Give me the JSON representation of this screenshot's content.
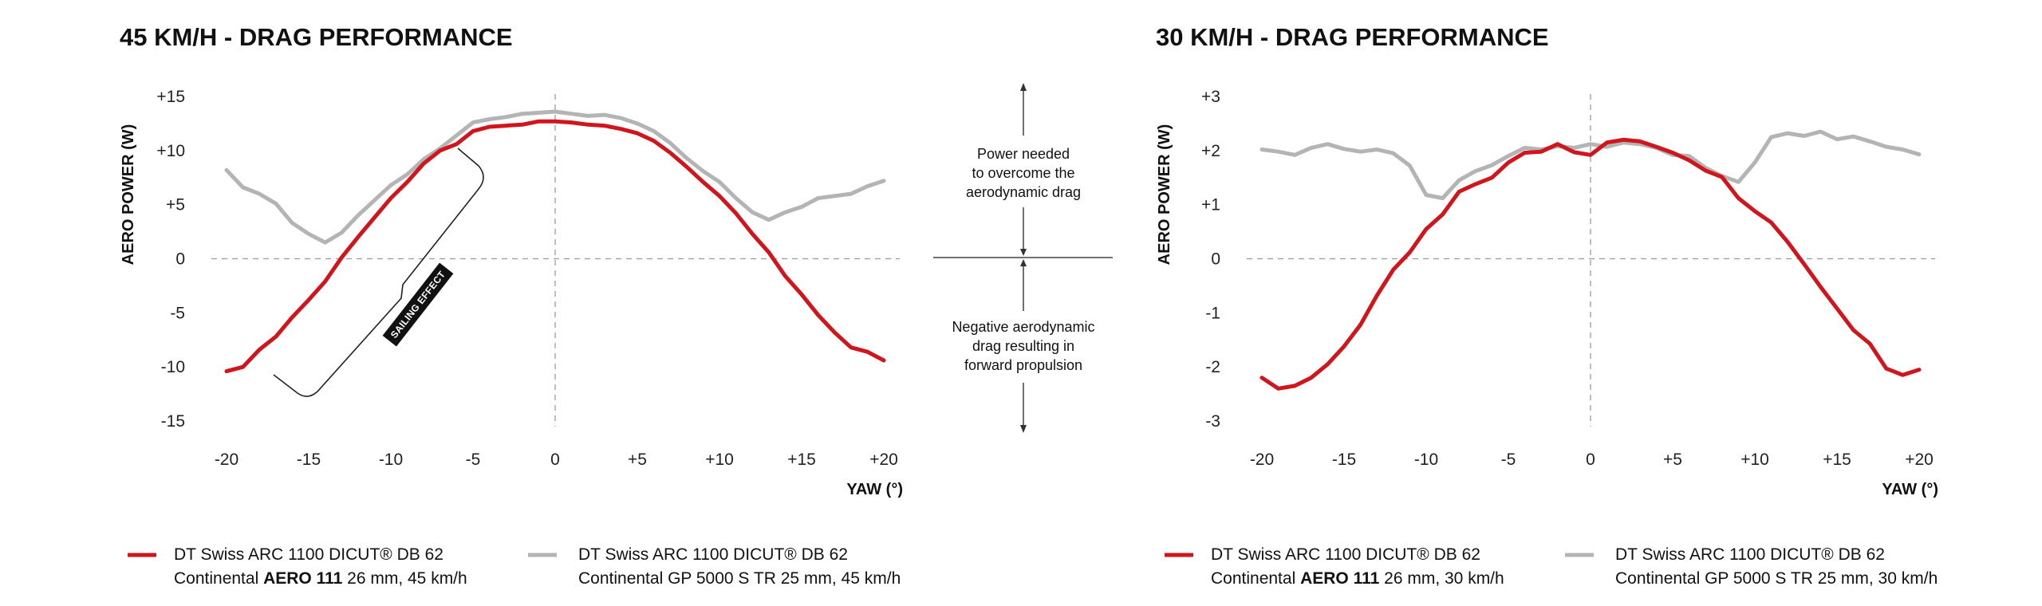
{
  "colors": {
    "red": "#d0151c",
    "gray": "#b4b4b4",
    "zero_line": "#9a9a9a",
    "text": "#111111"
  },
  "explainer": {
    "positive": [
      "Power needed",
      "to overcome the",
      "aerodynamic drag"
    ],
    "negative": [
      "Negative aerodynamic",
      "drag resulting in",
      "forward propulsion"
    ]
  },
  "chart_data": [
    {
      "type": "line",
      "title": "45 KM/H - DRAG PERFORMANCE",
      "ylabel": "AERO POWER (W)",
      "xlabel": "YAW (°)",
      "xlim": [
        -20,
        20
      ],
      "ylim": [
        -15,
        15
      ],
      "xticks": [
        "-20",
        "-15",
        "-10",
        "-5",
        "0",
        "+5",
        "+10",
        "+15",
        "+20"
      ],
      "yticks": [
        "+15",
        "+10",
        "+5",
        "0",
        "-5",
        "-10",
        "-15"
      ],
      "grid": "dashed zero lines",
      "annotation": "SAILING EFFECT",
      "series": [
        {
          "name": "DT Swiss ARC 1100 DICUT® DB 62 / Continental AERO 111 26 mm, 45 km/h",
          "color": "#d0151c",
          "x": [
            -20,
            -19,
            -18,
            -17,
            -16,
            -15,
            -14,
            -13,
            -12,
            -11,
            -10,
            -9,
            -8,
            -7,
            -6,
            -5,
            -4,
            -3,
            -2,
            -1,
            0,
            1,
            2,
            3,
            4,
            5,
            6,
            7,
            8,
            9,
            10,
            11,
            12,
            13,
            14,
            15,
            16,
            17,
            18,
            19,
            20
          ],
          "y": [
            -10.4,
            -10,
            -8.4,
            -7.2,
            -5.4,
            -3.8,
            -2.1,
            0.1,
            2,
            3.8,
            5.6,
            7.1,
            8.8,
            10,
            10.6,
            11.8,
            12.2,
            12.3,
            12.4,
            12.7,
            12.7,
            12.6,
            12.4,
            12.3,
            12,
            11.6,
            10.9,
            9.8,
            8.5,
            7.1,
            5.8,
            4.2,
            2.3,
            0.6,
            -1.6,
            -3.3,
            -5.2,
            -6.8,
            -8.2,
            -8.6,
            -9.4
          ]
        },
        {
          "name": "DT Swiss ARC 1100 DICUT® DB 62 / Continental GP 5000 S TR 25 mm, 45 km/h",
          "color": "#b4b4b4",
          "x": [
            -20,
            -19,
            -18,
            -17,
            -16,
            -15,
            -14,
            -13,
            -12,
            -11,
            -10,
            -9,
            -8,
            -7,
            -6,
            -5,
            -4,
            -3,
            -2,
            -1,
            0,
            1,
            2,
            3,
            4,
            5,
            6,
            7,
            8,
            9,
            10,
            11,
            12,
            13,
            14,
            15,
            16,
            17,
            18,
            19,
            20
          ],
          "y": [
            8.2,
            6.6,
            6,
            5.1,
            3.3,
            2.3,
            1.5,
            2.4,
            4,
            5.4,
            6.8,
            7.8,
            9.2,
            10.2,
            11.4,
            12.6,
            12.9,
            13.1,
            13.4,
            13.5,
            13.6,
            13.4,
            13.2,
            13.3,
            13,
            12.5,
            11.8,
            10.7,
            9.3,
            8.1,
            7.1,
            5.6,
            4.3,
            3.6,
            4.3,
            4.8,
            5.6,
            5.8,
            6,
            6.7,
            7.2
          ]
        }
      ]
    },
    {
      "type": "line",
      "title": "30 KM/H - DRAG PERFORMANCE",
      "ylabel": "AERO POWER (W)",
      "xlabel": "YAW (°)",
      "xlim": [
        -20,
        20
      ],
      "ylim": [
        -3,
        3
      ],
      "xticks": [
        "-20",
        "-15",
        "-10",
        "-5",
        "0",
        "+5",
        "+10",
        "+15",
        "+20"
      ],
      "yticks": [
        "+3",
        "+2",
        "+1",
        "0",
        "-1",
        "-2",
        "-3"
      ],
      "grid": "dashed zero lines",
      "series": [
        {
          "name": "DT Swiss ARC 1100 DICUT® DB 62 / Continental AERO 111 26 mm, 30 km/h",
          "color": "#d0151c",
          "x": [
            -20,
            -19,
            -18,
            -17,
            -16,
            -15,
            -14,
            -13,
            -12,
            -11,
            -10,
            -9,
            -8,
            -7,
            -6,
            -5,
            -4,
            -3,
            -2,
            -1,
            0,
            1,
            2,
            3,
            4,
            5,
            6,
            7,
            8,
            9,
            10,
            11,
            12,
            13,
            14,
            15,
            16,
            17,
            18,
            19,
            20
          ],
          "y": [
            -2.2,
            -2.4,
            -2.35,
            -2.2,
            -1.95,
            -1.62,
            -1.22,
            -0.68,
            -0.2,
            0.12,
            0.55,
            0.82,
            1.24,
            1.38,
            1.5,
            1.78,
            1.96,
            1.98,
            2.12,
            1.97,
            1.92,
            2.15,
            2.2,
            2.17,
            2.07,
            1.96,
            1.82,
            1.63,
            1.51,
            1.12,
            0.88,
            0.67,
            0.31,
            -0.1,
            -0.52,
            -0.92,
            -1.32,
            -1.57,
            -2.03,
            -2.15,
            -2.05
          ]
        },
        {
          "name": "DT Swiss ARC 1100 DICUT® DB 62 / Continental GP 5000 S TR 25 mm, 30 km/h",
          "color": "#b4b4b4",
          "x": [
            -20,
            -19,
            -18,
            -17,
            -16,
            -15,
            -14,
            -13,
            -12,
            -11,
            -10,
            -9,
            -8,
            -7,
            -6,
            -5,
            -4,
            -3,
            -2,
            -1,
            0,
            1,
            2,
            3,
            4,
            5,
            6,
            7,
            8,
            9,
            10,
            11,
            12,
            13,
            14,
            15,
            16,
            17,
            18,
            19,
            20
          ],
          "y": [
            2.02,
            1.98,
            1.92,
            2.05,
            2.12,
            2.03,
            1.98,
            2.02,
            1.95,
            1.72,
            1.18,
            1.12,
            1.45,
            1.62,
            1.73,
            1.9,
            2.05,
            2.02,
            2.08,
            2.05,
            2.12,
            2.07,
            2.15,
            2.12,
            2.05,
            1.92,
            1.9,
            1.68,
            1.53,
            1.42,
            1.78,
            2.25,
            2.32,
            2.27,
            2.35,
            2.21,
            2.26,
            2.17,
            2.07,
            2.02,
            1.93
          ]
        }
      ]
    }
  ],
  "legend": {
    "left": [
      {
        "line1": "DT Swiss ARC 1100 DICUT® DB 62",
        "pre": "Continental ",
        "bold": "AERO 111",
        "post": " 26 mm, 45 km/h",
        "color": "#d0151c"
      },
      {
        "line1": "DT Swiss ARC 1100 DICUT® DB 62",
        "pre": "Continental GP 5000 S TR 25 mm, 45 km/h",
        "bold": "",
        "post": "",
        "color": "#b4b4b4"
      }
    ],
    "right": [
      {
        "line1": "DT Swiss ARC 1100 DICUT® DB 62",
        "pre": "Continental ",
        "bold": "AERO 111",
        "post": " 26 mm, 30 km/h",
        "color": "#d0151c"
      },
      {
        "line1": "DT Swiss ARC 1100 DICUT® DB 62",
        "pre": "Continental GP 5000 S TR 25 mm, 30 km/h",
        "bold": "",
        "post": "",
        "color": "#b4b4b4"
      }
    ]
  }
}
